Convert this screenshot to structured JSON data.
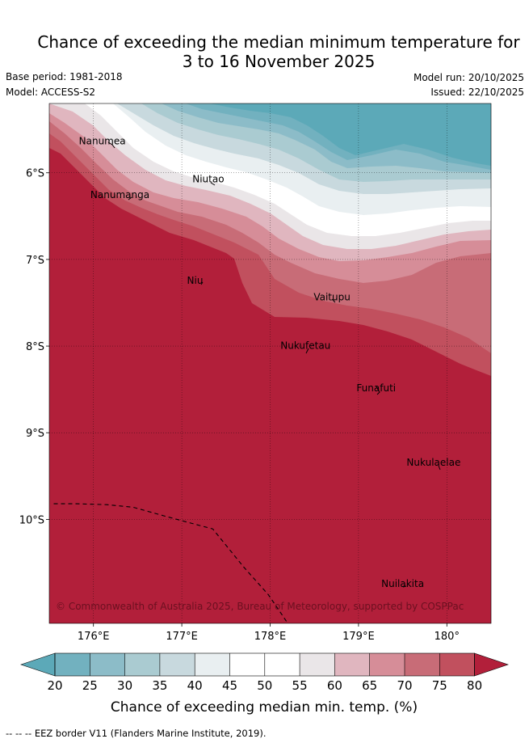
{
  "title": {
    "line1": "Chance of exceeding the median minimum temperature for",
    "line2": "3 to 16 November 2025"
  },
  "meta": {
    "base_period": "Base period: 1981-2018",
    "model": "Model: ACCESS-S2",
    "model_run": "Model run: 20/10/2025",
    "issued": "Issued: 22/10/2025"
  },
  "map": {
    "lon_range": [
      175.5,
      180.5
    ],
    "lat_range": [
      -11.2,
      -5.2
    ],
    "lon_ticks": [
      {
        "lon": 176,
        "label": "176°E"
      },
      {
        "lon": 177,
        "label": "177°E"
      },
      {
        "lon": 178,
        "label": "178°E"
      },
      {
        "lon": 179,
        "label": "179°E"
      },
      {
        "lon": 180,
        "label": "180°"
      }
    ],
    "lat_ticks": [
      {
        "lat": -6,
        "label": "6°S"
      },
      {
        "lat": -7,
        "label": "7°S"
      },
      {
        "lat": -8,
        "label": "8°S"
      },
      {
        "lat": -9,
        "label": "9°S"
      },
      {
        "lat": -10,
        "label": "10°S"
      }
    ],
    "places": [
      {
        "name": "Nanumea",
        "lon": 176.1,
        "lat": -5.67
      },
      {
        "name": "Niutao",
        "lon": 177.3,
        "lat": -6.11
      },
      {
        "name": "Nanumanga",
        "lon": 176.3,
        "lat": -6.29
      },
      {
        "name": "Niu",
        "lon": 177.15,
        "lat": -7.28
      },
      {
        "name": "Vaitupu",
        "lon": 178.7,
        "lat": -7.47
      },
      {
        "name": "Nukufetau",
        "lon": 178.4,
        "lat": -8.03
      },
      {
        "name": "Funafuti",
        "lon": 179.2,
        "lat": -8.52
      },
      {
        "name": "Nukulaelae",
        "lon": 179.85,
        "lat": -9.38
      },
      {
        "name": "Nuilakita",
        "lon": 179.5,
        "lat": -10.78
      }
    ],
    "eez_border": [
      [
        175.55,
        -9.82
      ],
      [
        175.8,
        -9.82
      ],
      [
        176.15,
        -9.83
      ],
      [
        176.45,
        -9.86
      ],
      [
        176.8,
        -9.96
      ],
      [
        177.2,
        -10.07
      ],
      [
        177.35,
        -10.11
      ],
      [
        177.7,
        -10.55
      ],
      [
        177.98,
        -10.87
      ],
      [
        178.1,
        -11.05
      ],
      [
        178.2,
        -11.2
      ]
    ],
    "credit": "© Commonwealth of Australia 2025, Bureau of Meteorology, supported by COSPPac"
  },
  "contours": {
    "levels": [
      20,
      25,
      30,
      35,
      40,
      45,
      50,
      55,
      60,
      65,
      70,
      75,
      80
    ],
    "colors": [
      "#5ca9b8",
      "#72b1bf",
      "#8cbcc8",
      "#aacbd1",
      "#c8d9de",
      "#e9eff1",
      "#ffffff",
      "#ffffff",
      "#eae6e8",
      "#e0b6bf",
      "#d68d98",
      "#c86c77",
      "#c1505e",
      "#b21f3a"
    ]
  },
  "colorbar": {
    "label": "Chance of exceeding median min. temp. (%)",
    "tick_labels": [
      "20",
      "25",
      "30",
      "35",
      "40",
      "45",
      "50",
      "55",
      "60",
      "65",
      "70",
      "75",
      "80"
    ]
  },
  "footnote": "--  --  -- EEZ border V11 (Flanders Marine Institute, 2019)."
}
